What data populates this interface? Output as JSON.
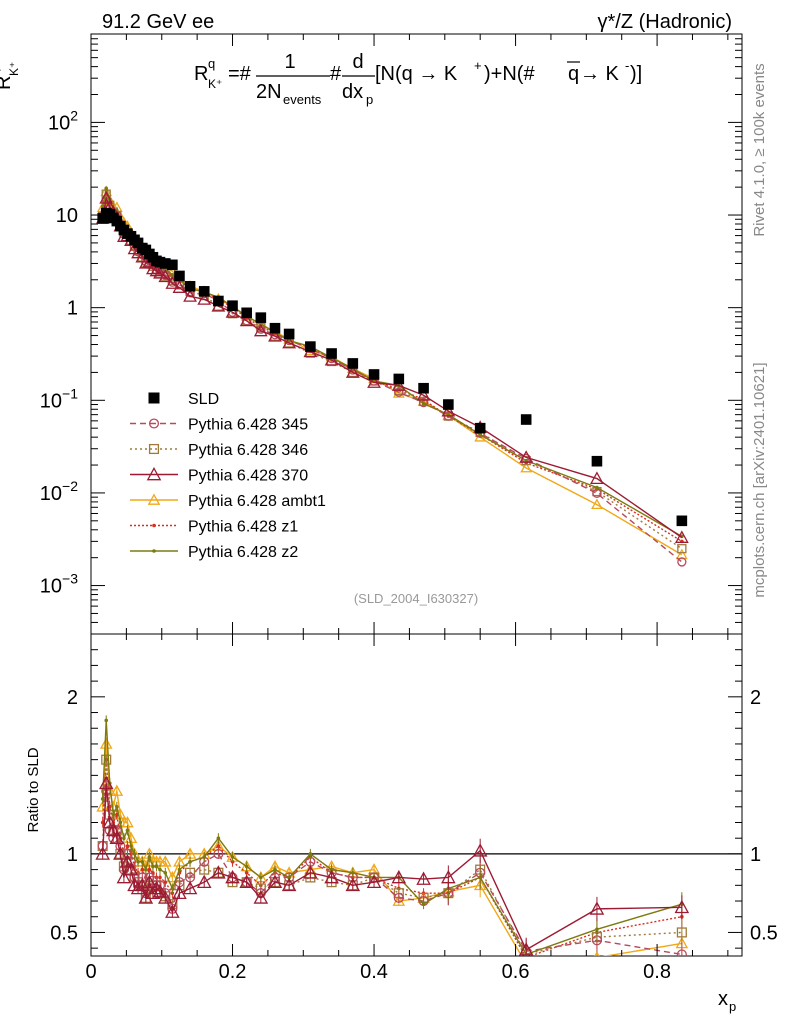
{
  "header": {
    "left": "91.2 GeV ee",
    "right": "γ*/Z (Hadronic)",
    "side_top": "Rivet 4.1.0, ≥ 100k events",
    "side_bottom": "mcplots.cern.ch [arXiv:2401.10621]",
    "analysis_id": "(SLD_2004_I630327)"
  },
  "formula": {
    "lhs": "R",
    "lhs_sup": "q",
    "lhs_sub": "K⁺",
    "eq": "=#",
    "frac1_num": "1",
    "frac1_den": "2N",
    "frac1_den_sub": "events",
    "mid": "#",
    "frac2_num": "d",
    "frac2_den": "dx",
    "frac2_den_sub": "p",
    "rhs_part1": "[N(q →  K",
    "rhs_sup1": "+",
    "rhs_part2": ")+N(#",
    "rhs_qbar": "q",
    "rhs_part3": " →  K",
    "rhs_sup2": "-",
    "rhs_part4": ")]"
  },
  "axes": {
    "ylabel_top_main": "R",
    "ylabel_top_sup": "q",
    "ylabel_top_sub": "K⁺",
    "ylabel_bottom": "Ratio to SLD",
    "xlabel_main": "x",
    "xlabel_sub": "p",
    "xticks": [
      "0",
      "0.2",
      "0.4",
      "0.6",
      "0.8"
    ],
    "ratio_ticks": [
      "0.5",
      "1",
      "2"
    ],
    "main_decades": [
      {
        "base": "10",
        "exp": "−3",
        "value": 0.001
      },
      {
        "base": "10",
        "exp": "−2",
        "value": 0.01
      },
      {
        "base": "10",
        "exp": "−1",
        "value": 0.1
      },
      {
        "base": "1",
        "exp": "",
        "value": 1
      },
      {
        "base": "10",
        "exp": "",
        "value": 10
      },
      {
        "base": "10",
        "exp": "2",
        "value": 100
      }
    ]
  },
  "legend": [
    {
      "label": "SLD",
      "color": "#000000",
      "marker": "filled-square",
      "dash": "none"
    },
    {
      "label": "Pythia 6.428 345",
      "color": "#b84a5e",
      "marker": "open-circle",
      "dash": "6,4"
    },
    {
      "label": "Pythia 6.428 346",
      "color": "#a07a3a",
      "marker": "open-square",
      "dash": "2,3"
    },
    {
      "label": "Pythia 6.428 370",
      "color": "#9c1b33",
      "marker": "open-triangle",
      "dash": "none"
    },
    {
      "label": "Pythia 6.428 ambt1",
      "color": "#f0a818",
      "marker": "triangle",
      "dash": "none"
    },
    {
      "label": "Pythia 6.428 z1",
      "color": "#d83020",
      "marker": "dot",
      "dash": "2,2"
    },
    {
      "label": "Pythia 6.428 z2",
      "color": "#7d7a10",
      "marker": "dot",
      "dash": "none"
    }
  ],
  "chart_data": {
    "type": "line",
    "title": "R_K+^q vs x_p",
    "xlabel": "x_p",
    "ylabel": "R_K+^q",
    "xlim": [
      0,
      0.92
    ],
    "ylim_main": [
      0.0003,
      900
    ],
    "ylim_ratio": [
      0.35,
      2.4
    ],
    "x": [
      0.0165,
      0.0215,
      0.0265,
      0.0315,
      0.0365,
      0.0415,
      0.0465,
      0.0515,
      0.0565,
      0.0615,
      0.0665,
      0.0725,
      0.0775,
      0.0825,
      0.0875,
      0.0925,
      0.0975,
      0.105,
      0.115,
      0.125,
      0.14,
      0.16,
      0.18,
      0.2,
      0.22,
      0.24,
      0.26,
      0.28,
      0.31,
      0.34,
      0.37,
      0.4,
      0.435,
      0.47,
      0.505,
      0.55,
      0.615,
      0.715,
      0.835
    ],
    "series": [
      {
        "name": "SLD",
        "values": [
          9.2,
          10.5,
          10.2,
          9.3,
          8.6,
          7.6,
          6.9,
          6.3,
          5.9,
          5.4,
          5.0,
          4.4,
          4.2,
          3.8,
          3.5,
          3.2,
          3.1,
          3.0,
          2.9,
          2.2,
          1.7,
          1.5,
          1.18,
          1.05,
          0.88,
          0.78,
          0.6,
          0.52,
          0.38,
          0.32,
          0.25,
          0.19,
          0.17,
          0.135,
          0.09,
          0.05,
          0.062,
          0.022,
          0.005
        ]
      },
      {
        "name": "Pythia 6.428 345",
        "ratio": [
          1.05,
          1.4,
          1.15,
          1.1,
          1.15,
          1.05,
          0.9,
          1.0,
          0.95,
          0.85,
          0.8,
          0.85,
          0.75,
          0.85,
          0.83,
          0.8,
          0.8,
          0.75,
          0.65,
          0.82,
          0.85,
          0.95,
          1.0,
          0.85,
          0.82,
          0.75,
          0.85,
          0.85,
          0.95,
          0.88,
          0.85,
          0.85,
          0.72,
          0.7,
          0.75,
          0.88,
          0.38,
          0.45,
          0.36
        ]
      },
      {
        "name": "Pythia 6.428 346",
        "ratio": [
          1.05,
          1.6,
          1.25,
          1.15,
          1.15,
          1.0,
          0.92,
          1.0,
          0.9,
          0.85,
          0.82,
          0.8,
          0.72,
          0.78,
          0.8,
          0.8,
          0.75,
          0.73,
          0.68,
          0.8,
          0.88,
          0.9,
          0.88,
          0.82,
          0.82,
          0.78,
          0.82,
          0.8,
          0.85,
          0.82,
          0.8,
          0.85,
          0.75,
          0.72,
          0.75,
          0.9,
          0.36,
          0.47,
          0.5
        ]
      },
      {
        "name": "Pythia 6.428 370",
        "ratio": [
          1.0,
          1.45,
          1.2,
          1.15,
          1.1,
          1.0,
          0.85,
          0.95,
          0.9,
          0.8,
          0.78,
          0.8,
          0.72,
          0.82,
          0.75,
          0.78,
          0.76,
          0.72,
          0.63,
          0.75,
          0.78,
          0.82,
          0.88,
          0.85,
          0.82,
          0.72,
          0.82,
          0.8,
          0.88,
          0.85,
          0.8,
          0.82,
          0.85,
          0.84,
          0.85,
          1.02,
          0.39,
          0.65,
          0.66
        ]
      },
      {
        "name": "Pythia 6.428 ambt1",
        "ratio": [
          1.3,
          1.7,
          1.4,
          1.3,
          1.4,
          1.25,
          1.2,
          1.2,
          1.1,
          1.0,
          0.95,
          0.95,
          0.92,
          1.0,
          0.95,
          0.95,
          0.95,
          0.95,
          0.85,
          0.95,
          1.0,
          1.0,
          1.05,
          0.98,
          0.92,
          0.85,
          0.92,
          0.88,
          0.9,
          0.92,
          0.88,
          0.9,
          0.7,
          0.72,
          0.76,
          0.8,
          0.3,
          0.34,
          0.43
        ]
      },
      {
        "name": "Pythia 6.428 z1",
        "ratio": [
          1.2,
          1.6,
          1.3,
          1.2,
          1.25,
          1.1,
          1.0,
          1.05,
          1.0,
          0.92,
          0.88,
          0.9,
          0.85,
          0.9,
          0.88,
          0.85,
          0.85,
          0.82,
          0.75,
          0.88,
          0.95,
          0.98,
          1.05,
          0.95,
          0.88,
          0.8,
          0.88,
          0.85,
          0.98,
          0.88,
          0.85,
          0.85,
          0.78,
          0.75,
          0.75,
          0.85,
          0.34,
          0.5,
          0.6
        ]
      },
      {
        "name": "Pythia 6.428 z2",
        "ratio": [
          1.35,
          1.85,
          1.45,
          1.25,
          1.3,
          1.2,
          1.1,
          1.15,
          1.05,
          1.0,
          0.95,
          0.95,
          0.9,
          0.98,
          0.92,
          0.92,
          0.9,
          0.88,
          0.78,
          0.9,
          0.95,
          0.98,
          1.1,
          0.98,
          0.92,
          0.85,
          0.9,
          0.85,
          1.0,
          0.9,
          0.88,
          0.85,
          0.85,
          0.68,
          0.78,
          0.85,
          0.36,
          0.52,
          0.68
        ]
      }
    ]
  }
}
